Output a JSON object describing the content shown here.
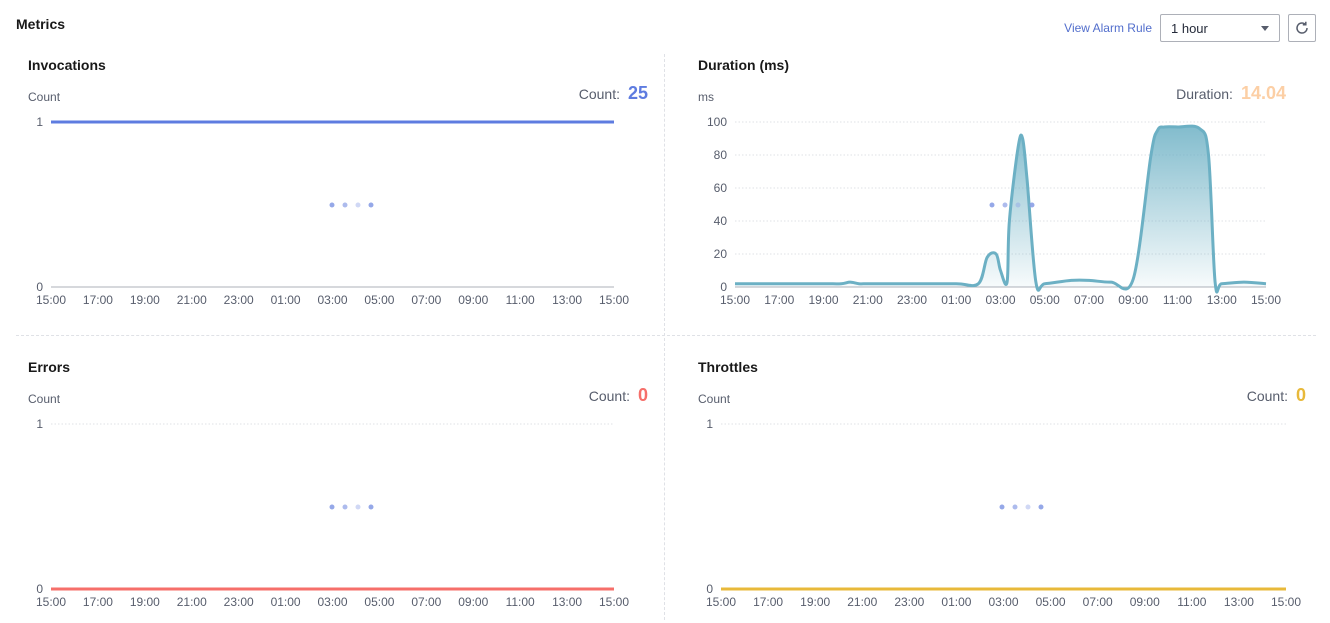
{
  "header": {
    "title": "Metrics",
    "alarm_link": "View Alarm Rule",
    "time_range": "1 hour"
  },
  "colors": {
    "invocations": "#5e7ce0",
    "duration": "#6cb0c4",
    "duration_value": "#fccfa5",
    "errors": "#f66f6a",
    "throttles": "#e8b93a",
    "grid": "#dfe1e6",
    "axis": "#adb0b8",
    "loading_dot": "#8a9ee6"
  },
  "icons": {
    "refresh": "refresh-icon",
    "dropdown": "chevron-down-icon",
    "loading": "loading-dots-icon"
  },
  "panels": {
    "invocations": {
      "title": "Invocations",
      "unit": "Count",
      "stat_label": "Count:",
      "stat_value": "25"
    },
    "duration": {
      "title": "Duration (ms)",
      "unit": "ms",
      "stat_label": "Duration:",
      "stat_value": "14.04"
    },
    "errors": {
      "title": "Errors",
      "unit": "Count",
      "stat_label": "Count:",
      "stat_value": "0"
    },
    "throttles": {
      "title": "Throttles",
      "unit": "Count",
      "stat_label": "Count:",
      "stat_value": "0"
    }
  },
  "chart_data": [
    {
      "key": "invocations",
      "type": "line",
      "title": "Invocations",
      "ylabel": "Count",
      "ylim": [
        0,
        1
      ],
      "yticks": [
        0,
        1
      ],
      "categories": [
        "15:00",
        "17:00",
        "19:00",
        "21:00",
        "23:00",
        "01:00",
        "03:00",
        "05:00",
        "07:00",
        "09:00",
        "11:00",
        "13:00",
        "15:00"
      ],
      "series": [
        {
          "values": [
            1,
            1,
            1,
            1,
            1,
            1,
            1,
            1,
            1,
            1,
            1,
            1,
            1
          ]
        }
      ]
    },
    {
      "key": "duration",
      "type": "area",
      "title": "Duration (ms)",
      "ylabel": "ms",
      "ylim": [
        0,
        100
      ],
      "yticks": [
        0,
        20,
        40,
        60,
        80,
        100
      ],
      "categories": [
        "15:00",
        "17:00",
        "19:00",
        "21:00",
        "23:00",
        "01:00",
        "03:00",
        "05:00",
        "07:00",
        "09:00",
        "11:00",
        "13:00",
        "15:00"
      ],
      "series": [
        {
          "x": [
            0,
            1,
            2,
            2.4,
            2.6,
            2.8,
            3,
            3.5,
            4,
            5,
            5.5,
            5.7,
            5.9,
            6,
            6.15,
            6.2,
            6.4,
            6.5,
            6.6,
            6.8,
            7,
            7.6,
            8,
            8.5,
            9,
            9.4,
            9.55,
            9.7,
            10,
            10.5,
            10.7,
            10.85,
            11,
            11.5,
            12
          ],
          "y": [
            2,
            2,
            2,
            2,
            3,
            2,
            2,
            2,
            2,
            2,
            2,
            18,
            20,
            10,
            3,
            40,
            85,
            90,
            65,
            3,
            2,
            4,
            4,
            3,
            5,
            80,
            95,
            97,
            97,
            96,
            80,
            3,
            2,
            3,
            2
          ]
        }
      ]
    },
    {
      "key": "errors",
      "type": "line",
      "title": "Errors",
      "ylabel": "Count",
      "ylim": [
        0,
        1
      ],
      "yticks": [
        0,
        1
      ],
      "categories": [
        "15:00",
        "17:00",
        "19:00",
        "21:00",
        "23:00",
        "01:00",
        "03:00",
        "05:00",
        "07:00",
        "09:00",
        "11:00",
        "13:00",
        "15:00"
      ],
      "series": [
        {
          "values": [
            0,
            0,
            0,
            0,
            0,
            0,
            0,
            0,
            0,
            0,
            0,
            0,
            0
          ]
        }
      ]
    },
    {
      "key": "throttles",
      "type": "line",
      "title": "Throttles",
      "ylabel": "Count",
      "ylim": [
        0,
        1
      ],
      "yticks": [
        0,
        1
      ],
      "categories": [
        "15:00",
        "17:00",
        "19:00",
        "21:00",
        "23:00",
        "01:00",
        "03:00",
        "05:00",
        "07:00",
        "09:00",
        "11:00",
        "13:00",
        "15:00"
      ],
      "series": [
        {
          "values": [
            0,
            0,
            0,
            0,
            0,
            0,
            0,
            0,
            0,
            0,
            0,
            0,
            0
          ]
        }
      ]
    }
  ]
}
